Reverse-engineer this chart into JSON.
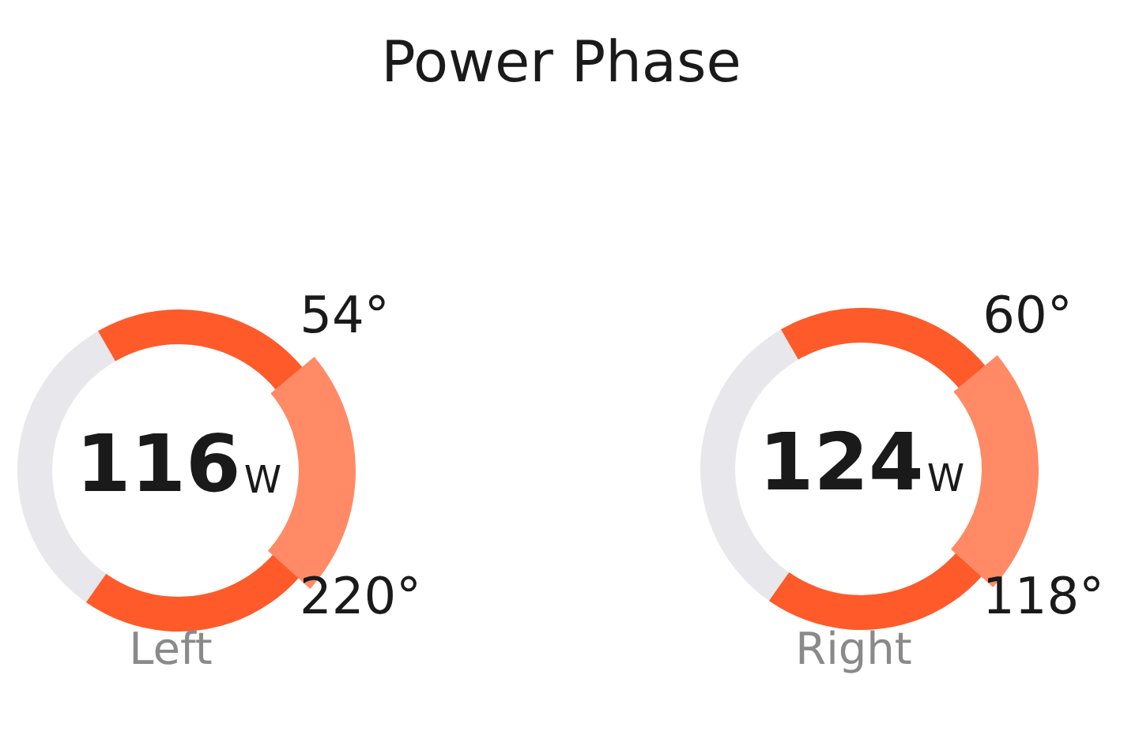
{
  "chart_data": {
    "type": "other",
    "title": "Power Phase",
    "categories": [
      "Left",
      "Right"
    ],
    "values": [
      116,
      124
    ],
    "annotations": [
      {
        "text": "W",
        "x": "Left"
      },
      {
        "text": "54°",
        "x": "Left"
      },
      {
        "text": "220°",
        "x": "Left"
      },
      {
        "text": "W",
        "x": "Right"
      },
      {
        "text": "60°",
        "x": "Right"
      },
      {
        "text": "118°",
        "x": "Right"
      }
    ],
    "data_labels": true,
    "color": "#ff5a2a"
  }
}
